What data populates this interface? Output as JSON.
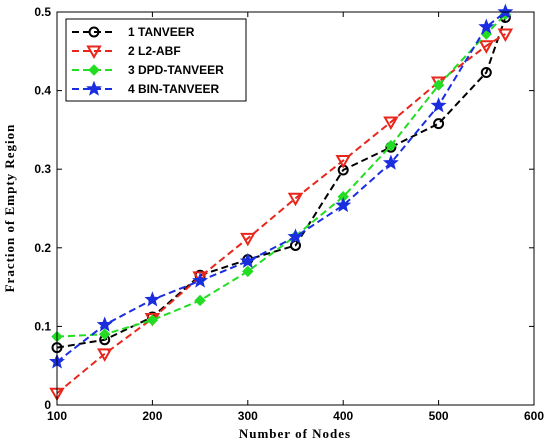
{
  "chart_data": {
    "type": "line",
    "xlabel": "Number of Nodes",
    "ylabel": "Fraction of Empty Region",
    "xlim": [
      100,
      600
    ],
    "ylim": [
      0,
      0.5
    ],
    "xticks": [
      100,
      200,
      300,
      400,
      500,
      600
    ],
    "yticks": [
      0,
      0.1,
      0.2,
      0.3,
      0.4,
      0.5
    ],
    "xtick_labels": [
      "100",
      "200",
      "300",
      "400",
      "500",
      "600"
    ],
    "ytick_labels": [
      "0",
      "0.1",
      "0.2",
      "0.3",
      "0.4",
      "0.5"
    ],
    "grid": false,
    "legend_position": "top-left",
    "series": [
      {
        "name": "1 TANVEER",
        "color": "#000000",
        "marker": "circle",
        "x": [
          100,
          150,
          200,
          250,
          300,
          350,
          400,
          450,
          500,
          550,
          570
        ],
        "y": [
          0.073,
          0.083,
          0.112,
          0.165,
          0.185,
          0.203,
          0.299,
          0.328,
          0.358,
          0.423,
          0.493
        ]
      },
      {
        "name": "2 L2-ABF",
        "color": "#e8261c",
        "marker": "triangle-down",
        "x": [
          100,
          150,
          200,
          250,
          300,
          350,
          400,
          450,
          500,
          550,
          570
        ],
        "y": [
          0.015,
          0.065,
          0.11,
          0.163,
          0.212,
          0.263,
          0.311,
          0.36,
          0.411,
          0.457,
          0.472
        ]
      },
      {
        "name": "3 DPD-TANVEER",
        "color": "#22dd22",
        "marker": "diamond",
        "x": [
          100,
          150,
          200,
          250,
          300,
          350,
          400,
          450,
          500,
          550,
          570
        ],
        "y": [
          0.087,
          0.09,
          0.108,
          0.133,
          0.17,
          0.215,
          0.265,
          0.33,
          0.407,
          0.472,
          0.497
        ]
      },
      {
        "name": "4 BIN-TANVEER",
        "color": "#1a2ee0",
        "marker": "star",
        "x": [
          100,
          150,
          200,
          250,
          300,
          350,
          400,
          450,
          500,
          550,
          570
        ],
        "y": [
          0.055,
          0.102,
          0.134,
          0.158,
          0.183,
          0.214,
          0.254,
          0.308,
          0.381,
          0.481,
          0.5
        ]
      }
    ]
  }
}
